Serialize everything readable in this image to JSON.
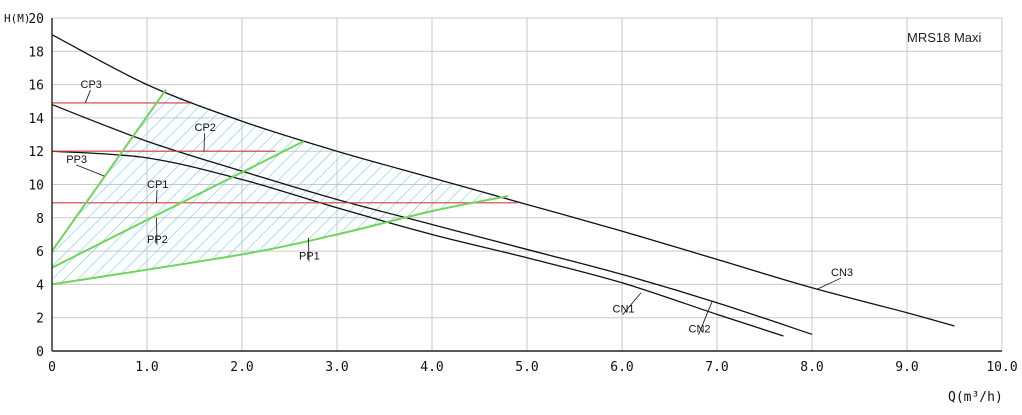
{
  "chart_data": {
    "type": "line",
    "title": "MRS18 Maxi",
    "xlabel": "Q(m³/h)",
    "ylabel": "H(M)",
    "xlim": [
      0,
      10
    ],
    "ylim": [
      0,
      20
    ],
    "x_ticks": [
      "0",
      "1.0",
      "2.0",
      "3.0",
      "4.0",
      "5.0",
      "6.0",
      "7.0",
      "8.0",
      "9.0",
      "10.0"
    ],
    "y_ticks": [
      "0",
      "2",
      "4",
      "6",
      "8",
      "10",
      "12",
      "14",
      "16",
      "18",
      "20"
    ],
    "grid": true,
    "series": [
      {
        "name": "CN3",
        "style": "black",
        "points": [
          [
            0,
            19
          ],
          [
            1,
            16
          ],
          [
            2,
            13.8
          ],
          [
            3,
            12
          ],
          [
            4,
            10.4
          ],
          [
            5,
            8.8
          ],
          [
            6,
            7.2
          ],
          [
            7,
            5.5
          ],
          [
            8,
            3.8
          ],
          [
            9,
            2.3
          ],
          [
            9.5,
            1.5
          ]
        ]
      },
      {
        "name": "CN2",
        "style": "black",
        "points": [
          [
            0,
            14.8
          ],
          [
            1,
            12.6
          ],
          [
            2,
            10.8
          ],
          [
            3,
            9.1
          ],
          [
            4,
            7.6
          ],
          [
            5,
            6.1
          ],
          [
            6,
            4.6
          ],
          [
            7,
            2.9
          ],
          [
            8,
            1
          ]
        ]
      },
      {
        "name": "CN1",
        "style": "black",
        "points": [
          [
            0,
            12
          ],
          [
            1,
            11.6
          ],
          [
            2,
            10.3
          ],
          [
            3,
            8.6
          ],
          [
            4,
            7
          ],
          [
            5,
            5.6
          ],
          [
            6,
            4.1
          ],
          [
            7,
            2.2
          ],
          [
            7.7,
            0.9
          ]
        ]
      },
      {
        "name": "CP3",
        "style": "red",
        "points": [
          [
            0,
            14.9
          ],
          [
            1.45,
            14.9
          ]
        ]
      },
      {
        "name": "CP2",
        "style": "red",
        "points": [
          [
            0,
            12
          ],
          [
            2.35,
            12
          ]
        ]
      },
      {
        "name": "CP1",
        "style": "red",
        "points": [
          [
            0,
            8.9
          ],
          [
            4.9,
            8.9
          ]
        ]
      },
      {
        "name": "PP3",
        "style": "green",
        "points": [
          [
            0,
            6
          ],
          [
            1.2,
            15.7
          ]
        ]
      },
      {
        "name": "PP2",
        "style": "green",
        "points": [
          [
            0,
            5
          ],
          [
            2.65,
            12.6
          ]
        ]
      },
      {
        "name": "PP1",
        "style": "green",
        "points": [
          [
            0,
            4
          ],
          [
            2,
            5.8
          ],
          [
            3,
            7
          ],
          [
            4,
            8.4
          ],
          [
            4.8,
            9.3
          ]
        ]
      }
    ],
    "curve_labels": [
      {
        "text": "CP3",
        "at": [
          0.3,
          15.8
        ],
        "target": [
          0.35,
          14.9
        ]
      },
      {
        "text": "CP2",
        "at": [
          1.5,
          13.2
        ],
        "target": [
          1.6,
          12
        ]
      },
      {
        "text": "PP3",
        "at": [
          0.15,
          11.3
        ],
        "target": [
          0.55,
          10.5
        ]
      },
      {
        "text": "CP1",
        "at": [
          1.0,
          9.8
        ],
        "target": [
          1.1,
          8.9
        ]
      },
      {
        "text": "PP2",
        "at": [
          1.0,
          6.5
        ],
        "target": [
          1.1,
          8.0
        ]
      },
      {
        "text": "PP1",
        "at": [
          2.6,
          5.5
        ],
        "target": [
          2.7,
          6.8
        ]
      },
      {
        "text": "CN3",
        "at": [
          8.2,
          4.5
        ],
        "target": [
          8.05,
          3.7
        ]
      },
      {
        "text": "CN2",
        "at": [
          6.7,
          1.1
        ],
        "target": [
          6.95,
          3.0
        ]
      },
      {
        "text": "CN1",
        "at": [
          5.9,
          2.3
        ],
        "target": [
          6.2,
          3.5
        ]
      }
    ],
    "hatched_region": {
      "points": [
        [
          0,
          6
        ],
        [
          1.2,
          15.7
        ],
        [
          2,
          13.8
        ],
        [
          3,
          12
        ],
        [
          4,
          10.4
        ],
        [
          4.8,
          9.3
        ],
        [
          4,
          8.4
        ],
        [
          3,
          7
        ],
        [
          2,
          5.8
        ],
        [
          0,
          4
        ]
      ],
      "color": "#5ec8e0"
    }
  }
}
